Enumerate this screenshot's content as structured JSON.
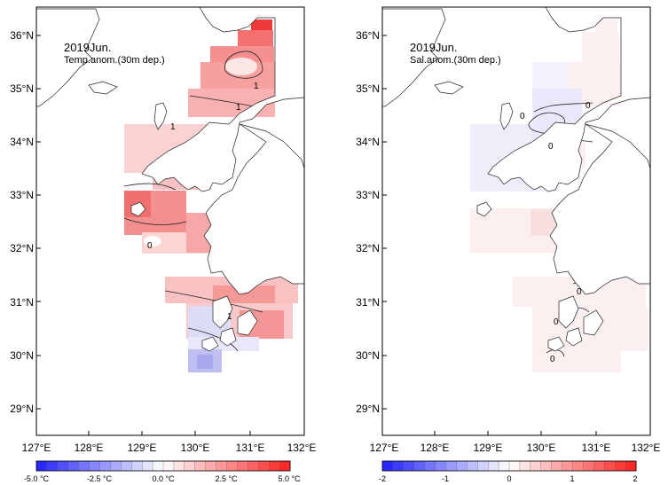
{
  "panels": [
    {
      "title": "2019Jun.",
      "subtitle": "Temp.anom.(30m dep.)",
      "lat_labels": [
        "36°N",
        "35°N",
        "34°N",
        "33°N",
        "32°N",
        "31°N",
        "30°N",
        "29°N"
      ],
      "lon_labels": [
        "127°E",
        "128°E",
        "129°E",
        "130°E",
        "131°E",
        "132°E"
      ],
      "contour_labels": [
        "1",
        "1",
        "1",
        "0",
        "1"
      ],
      "colorbar": {
        "labels": [
          "-5.0 °C",
          "-2.5 °C",
          "0.0 °C",
          "2.5 °C",
          "5.0 °C"
        ],
        "range": [
          -5.0,
          5.0
        ]
      }
    },
    {
      "title": "2019Jun.",
      "subtitle": "Sal.anom.(30m dep.)",
      "lat_labels": [
        "36°N",
        "35°N",
        "34°N",
        "33°N",
        "32°N",
        "31°N",
        "30°N",
        "29°N"
      ],
      "lon_labels": [
        "127°E",
        "128°E",
        "129°E",
        "130°E",
        "131°E",
        "132°E"
      ],
      "contour_labels": [
        "0",
        "0",
        "0",
        "0",
        "0",
        "0"
      ],
      "colorbar": {
        "labels": [
          "-2",
          "-1",
          "0",
          "1",
          "2"
        ],
        "range": [
          -2,
          2
        ]
      }
    }
  ],
  "colors": {
    "neg_max": "#2020ff",
    "zero": "#ffffff",
    "pos_max": "#ff2020"
  }
}
